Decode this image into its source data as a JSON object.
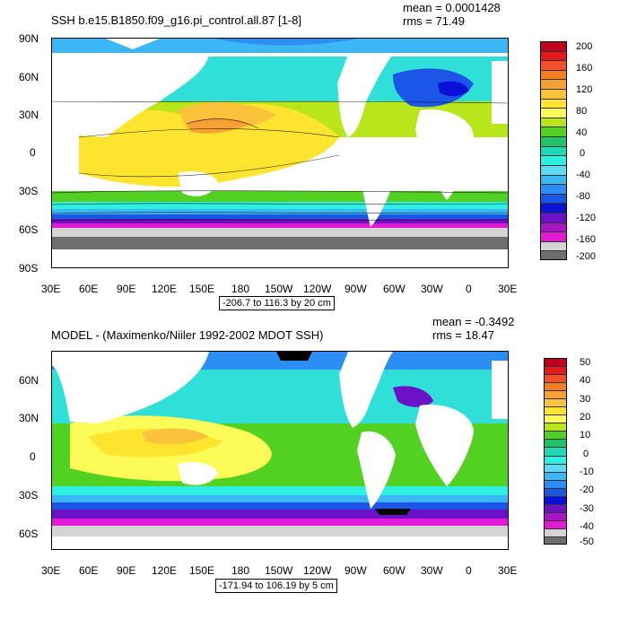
{
  "panels": [
    {
      "title": "SSH b.e15.B1850.f09_g16.pi_control.all.87 [1-8]",
      "mean_text": "mean = 0.0001428",
      "rms_text": "rms = 71.49",
      "range_text": "-206.7 to 116.3 by 20 cm",
      "lat_labels": [
        "90N",
        "60N",
        "30N",
        "0",
        "30S",
        "60S",
        "90S"
      ],
      "lon_labels": [
        "30E",
        "60E",
        "90E",
        "120E",
        "150E",
        "180",
        "150W",
        "120W",
        "90W",
        "60W",
        "30W",
        "0",
        "30E"
      ],
      "colorbar_labels": [
        "200",
        "160",
        "120",
        "80",
        "40",
        "0",
        "-40",
        "-80",
        "-120",
        "-160",
        "-200"
      ],
      "colorbar_colors": [
        "#c1001f",
        "#e4191b",
        "#f0502b",
        "#f57f1f",
        "#f7a033",
        "#fbc23b",
        "#fde42f",
        "#fdfb57",
        "#b9e61b",
        "#52d123",
        "#21c36a",
        "#1ed9b3",
        "#2ef0e0",
        "#5ed9f6",
        "#3cb7f5",
        "#2a8ef2",
        "#1c56e6",
        "#0a10d8",
        "#6b12c8",
        "#a616c1",
        "#e21ad3",
        "#d4d4d4",
        "#6e6e6e"
      ]
    },
    {
      "title": "MODEL - (Maximenko/Niiler 1992-2002 MDOT SSH)",
      "mean_text": "mean = -0.3492",
      "rms_text": "rms = 18.47",
      "range_text": "-171.94 to 106.19 by 5 cm",
      "lat_labels": [
        "60N",
        "30N",
        "0",
        "30S",
        "60S"
      ],
      "lon_labels": [
        "30E",
        "60E",
        "90E",
        "120E",
        "150E",
        "180",
        "150W",
        "120W",
        "90W",
        "60W",
        "30W",
        "0",
        "30E"
      ],
      "colorbar_labels": [
        "50",
        "40",
        "30",
        "20",
        "10",
        "0",
        "-10",
        "-20",
        "-30",
        "-40",
        "-50"
      ],
      "colorbar_colors": [
        "#c1001f",
        "#e4191b",
        "#f0502b",
        "#f57f1f",
        "#f7a033",
        "#fbc23b",
        "#fde42f",
        "#fdfb57",
        "#b9e61b",
        "#52d123",
        "#21c36a",
        "#1ed9b3",
        "#2ef0e0",
        "#5ed9f6",
        "#3cb7f5",
        "#2a8ef2",
        "#1c56e6",
        "#0a10d8",
        "#6b12c8",
        "#a616c1",
        "#e21ad3",
        "#d4d4d4",
        "#6e6e6e"
      ]
    }
  ]
}
